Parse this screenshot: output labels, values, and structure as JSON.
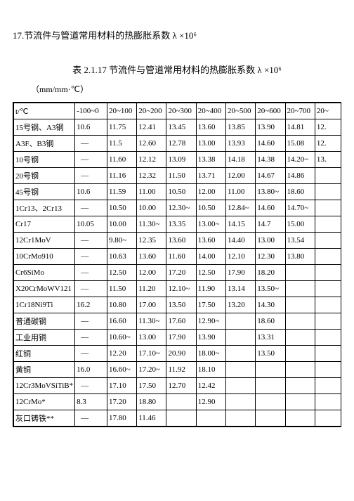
{
  "heading": "17.节流件与管道常用材料的热膨胀系数 λ ×10⁶",
  "tableTitle": "表 2.1.17 节流件与管道常用材料的热膨胀系数 λ ×10⁶",
  "unit": "（mm/mm·℃）",
  "columns": [
    "t/℃",
    "-100~0",
    "20~100",
    "20~200",
    "20~300",
    "20~400",
    "20~500",
    "20~600",
    "20~700",
    "20~"
  ],
  "rows": [
    {
      "label": "15号钢、A3钢",
      "cells": [
        "10.6",
        "11.75",
        "12.41",
        "13.45",
        "13.60",
        "13.85",
        "13.90",
        "14.81",
        "12."
      ]
    },
    {
      "label": "A3F、B3钢",
      "cells": [
        "—",
        "11.5",
        "12.60",
        "12.78",
        "13.00",
        "13.93",
        "14.60",
        "15.08",
        "12."
      ]
    },
    {
      "label": "10号钢",
      "cells": [
        "—",
        "11.60",
        "12.12",
        "13.09",
        "13.38",
        "14.18",
        "14.38",
        "14.20~",
        "13."
      ]
    },
    {
      "label": "20号钢",
      "cells": [
        "—",
        "11.16",
        "12.32",
        "11.50",
        "13.71",
        "12.00",
        "14.67",
        "14.86",
        ""
      ]
    },
    {
      "label": "45号钢",
      "cells": [
        "10.6",
        "11.59",
        "11.00",
        "10.50",
        "12.00",
        "11.00",
        "13.80~",
        "18.60",
        ""
      ]
    },
    {
      "label": "1Cr13、2Cr13",
      "cells": [
        "—",
        "10.50",
        "10.00",
        "12.30~",
        "10.50",
        "12.84~",
        "14.60",
        "14.70~",
        ""
      ]
    },
    {
      "label": "Cr17",
      "cells": [
        "10.05",
        "10.00",
        "11.30~",
        "13.35",
        "13.00~",
        "14.15",
        "14.7",
        "15.00",
        ""
      ]
    },
    {
      "label": "12Cr1MoV",
      "cells": [
        "—",
        "9.80~",
        "12.35",
        "13.60",
        "13.60",
        "14.40",
        "13.00",
        "13.54",
        ""
      ]
    },
    {
      "label": "10CrMo910",
      "cells": [
        "—",
        "10.63",
        "13.60",
        "11.60",
        "14.00",
        "12.10",
        "12.30",
        "13.80",
        ""
      ]
    },
    {
      "label": "Cr6SiMo",
      "cells": [
        "—",
        "12.50",
        "12.00",
        "17.20",
        "12.50",
        "17.90",
        "18.20",
        "",
        ""
      ]
    },
    {
      "label": "X20CrMoWV121",
      "cells": [
        "—",
        "11.50",
        "11.20",
        "12.10~",
        "11.90",
        "13.14",
        "13.50~",
        "",
        ""
      ]
    },
    {
      "label": "1Cr18Ni9Ti",
      "cells": [
        "16.2",
        "10.80",
        "17.00",
        "13.50",
        "17.50",
        "13.20",
        "14.30",
        "",
        ""
      ]
    },
    {
      "label": "普通碳钢",
      "cells": [
        "—",
        "16.60",
        "11.30~",
        "17.60",
        "12.90~",
        "",
        "18.60",
        "",
        ""
      ]
    },
    {
      "label": "工业用铜",
      "cells": [
        "—",
        "10.60~",
        "13.00",
        "17.90",
        "13.90",
        "",
        "13.31",
        "",
        ""
      ]
    },
    {
      "label": "红铜",
      "cells": [
        "—",
        "12.20",
        "17.10~",
        "20.90",
        "18.00~",
        "",
        "13.50",
        "",
        ""
      ]
    },
    {
      "label": "黄铜",
      "cells": [
        "16.0",
        "16.60~",
        "17.20~",
        "11.92",
        "18.10",
        "",
        "",
        "",
        ""
      ]
    },
    {
      "label": "12Cr3MoVSiTiB*",
      "cells": [
        "—",
        "17.10",
        "17.50",
        "12.70",
        "12.42",
        "",
        "",
        "",
        ""
      ]
    },
    {
      "label": "12CrMo*",
      "cells": [
        "8.3",
        "17.20",
        "18.80",
        "",
        "12.90",
        "",
        "",
        "",
        ""
      ]
    },
    {
      "label": "灰口铸铁**",
      "cells": [
        "—",
        "17.80",
        "11.46",
        "",
        "",
        "",
        "",
        "",
        ""
      ]
    }
  ],
  "colWidths": {
    "first": 80,
    "data": 39
  }
}
